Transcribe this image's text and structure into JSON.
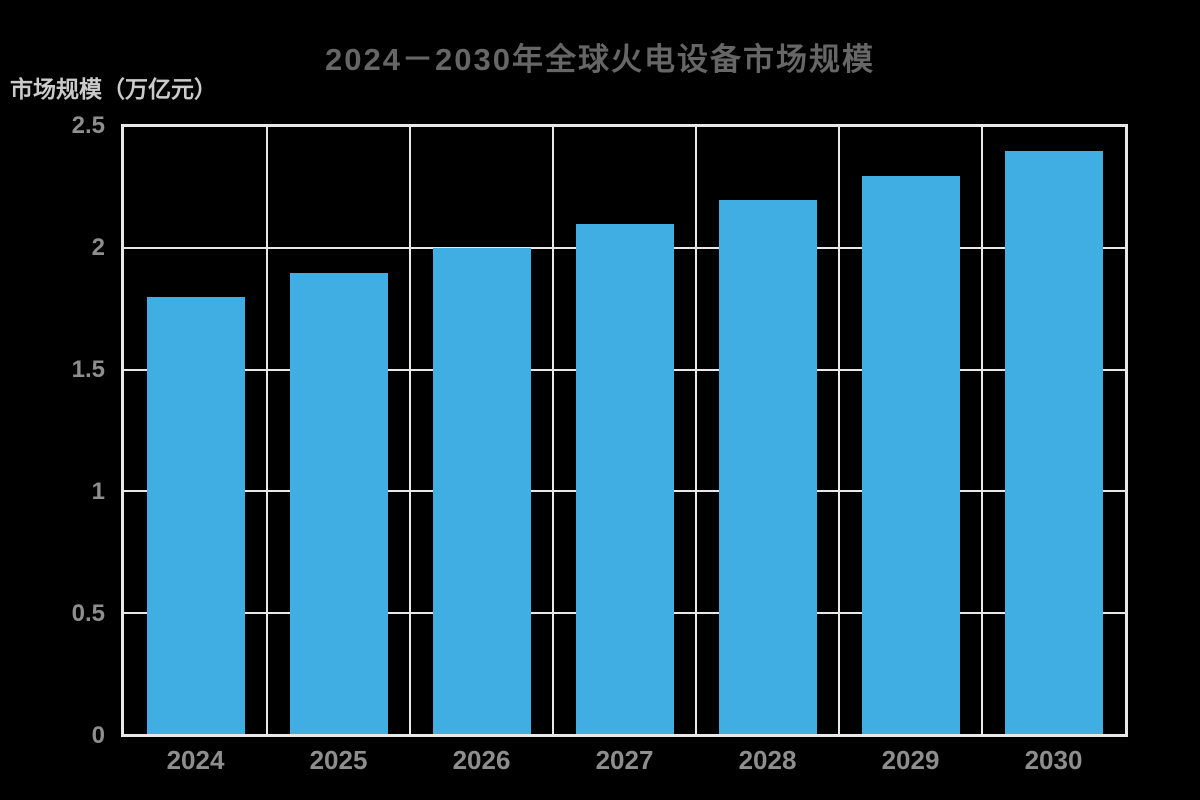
{
  "chart_data": {
    "type": "bar",
    "title": "2024－2030年全球火电设备市场规模",
    "ylabel": "市场规模（万亿元）",
    "xlabel": "",
    "categories": [
      "2024",
      "2025",
      "2026",
      "2027",
      "2028",
      "2029",
      "2030"
    ],
    "values": [
      1.8,
      1.9,
      2.0,
      2.1,
      2.2,
      2.3,
      2.4
    ],
    "ylim": [
      0,
      2.5
    ],
    "yticks": [
      0,
      0.5,
      1,
      1.5,
      2,
      2.5
    ],
    "ytick_labels": [
      "0",
      "0.5",
      "1",
      "1.5",
      "2",
      "2.5"
    ],
    "grid": true,
    "legend": false,
    "colors": {
      "background": "#000000",
      "bar": "#41AEE3",
      "grid_line": "#E8E8E8",
      "title": "#666666",
      "axis_label": "#CBCBCB",
      "tick_label": "#8E8E8E"
    }
  }
}
